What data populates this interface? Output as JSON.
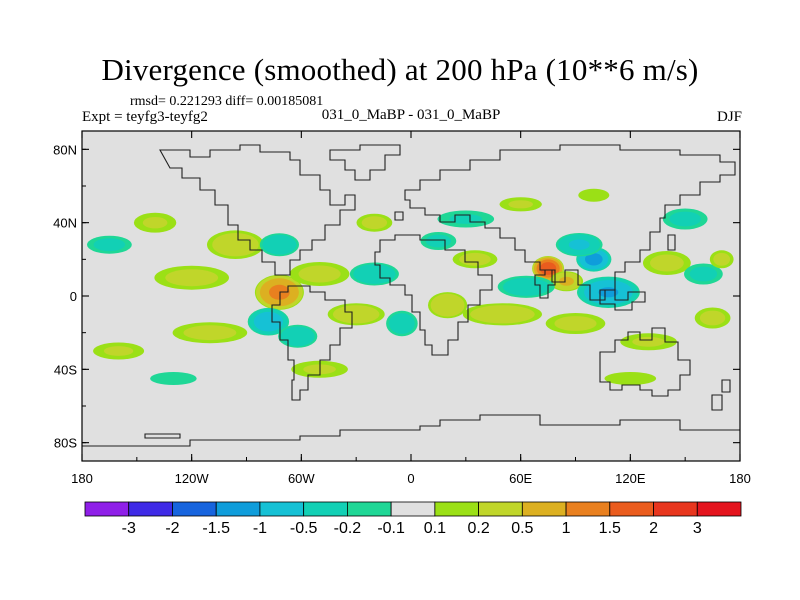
{
  "chart_data": {
    "type": "heatmap",
    "title": "Divergence (smoothed) at 200 hPa (10**6 m/s)",
    "stats_text": "rmsd= 0.221293 diff= 0.00185081",
    "left_label": "Expt = teyfg3-teyfg2",
    "center_label": "031_0_MaBP - 031_0_MaBP",
    "right_label": "DJF",
    "x_range": [
      -180,
      180
    ],
    "y_range": [
      -90,
      90
    ],
    "x_ticks": [
      {
        "value": -180,
        "label": "180"
      },
      {
        "value": -120,
        "label": "120W"
      },
      {
        "value": -60,
        "label": "60W"
      },
      {
        "value": 0,
        "label": "0"
      },
      {
        "value": 60,
        "label": "60E"
      },
      {
        "value": 120,
        "label": "120E"
      },
      {
        "value": 180,
        "label": "180"
      }
    ],
    "y_ticks": [
      {
        "value": 80,
        "label": "80N"
      },
      {
        "value": 40,
        "label": "40N"
      },
      {
        "value": 0,
        "label": "0"
      },
      {
        "value": -40,
        "label": "40S"
      },
      {
        "value": -80,
        "label": "80S"
      }
    ],
    "levels": [
      "-3",
      "-2",
      "-1.5",
      "-1",
      "-0.5",
      "-0.2",
      "-0.1",
      "0.1",
      "0.2",
      "0.5",
      "1",
      "1.5",
      "2",
      "3"
    ],
    "colors": [
      "#8f1fe8",
      "#3f2ae6",
      "#1764de",
      "#0f9ddb",
      "#16c1d5",
      "#12d0b5",
      "#1fd796",
      "#e0e0e0",
      "#9be016",
      "#c0d62a",
      "#dcb021",
      "#e9801f",
      "#ea5c1e",
      "#e8361e",
      "#e4141e"
    ],
    "features": [
      {
        "lon": 75,
        "lat": 15,
        "rx": 9,
        "ry": 7,
        "v": 2.0
      },
      {
        "lon": 100,
        "lat": 20,
        "rx": 10,
        "ry": 7,
        "v": -1.3
      },
      {
        "lon": 92,
        "lat": 28,
        "rx": 14,
        "ry": 7,
        "v": -0.6
      },
      {
        "lon": 85,
        "lat": 8,
        "rx": 10,
        "ry": 6,
        "v": 0.6
      },
      {
        "lon": 108,
        "lat": 2,
        "rx": 18,
        "ry": 9,
        "v": -1.1
      },
      {
        "lon": 63,
        "lat": 5,
        "rx": 18,
        "ry": 7,
        "v": -0.4
      },
      {
        "lon": 140,
        "lat": 18,
        "rx": 16,
        "ry": 8,
        "v": 0.3
      },
      {
        "lon": 160,
        "lat": 12,
        "rx": 13,
        "ry": 7,
        "v": -0.3
      },
      {
        "lon": 170,
        "lat": 20,
        "rx": 8,
        "ry": 6,
        "v": 0.3
      },
      {
        "lon": 150,
        "lat": 42,
        "rx": 15,
        "ry": 7,
        "v": -0.3
      },
      {
        "lon": -72,
        "lat": 2,
        "rx": 14,
        "ry": 10,
        "v": 1.2
      },
      {
        "lon": -78,
        "lat": -14,
        "rx": 12,
        "ry": 8,
        "v": -0.9
      },
      {
        "lon": -62,
        "lat": -22,
        "rx": 12,
        "ry": 7,
        "v": -0.5
      },
      {
        "lon": -96,
        "lat": 28,
        "rx": 18,
        "ry": 9,
        "v": 0.4
      },
      {
        "lon": -72,
        "lat": 28,
        "rx": 12,
        "ry": 7,
        "v": -0.5
      },
      {
        "lon": -50,
        "lat": 12,
        "rx": 20,
        "ry": 8,
        "v": 0.3
      },
      {
        "lon": -120,
        "lat": 10,
        "rx": 25,
        "ry": 8,
        "v": 0.3
      },
      {
        "lon": -140,
        "lat": 40,
        "rx": 15,
        "ry": 7,
        "v": 0.25
      },
      {
        "lon": -165,
        "lat": 28,
        "rx": 15,
        "ry": 6,
        "v": -0.3
      },
      {
        "lon": -160,
        "lat": -30,
        "rx": 18,
        "ry": 6,
        "v": 0.25
      },
      {
        "lon": -110,
        "lat": -20,
        "rx": 25,
        "ry": 7,
        "v": 0.3
      },
      {
        "lon": -20,
        "lat": 12,
        "rx": 15,
        "ry": 7,
        "v": -0.5
      },
      {
        "lon": -30,
        "lat": -10,
        "rx": 18,
        "ry": 7,
        "v": 0.4
      },
      {
        "lon": -5,
        "lat": -15,
        "rx": 10,
        "ry": 8,
        "v": -0.4
      },
      {
        "lon": 20,
        "lat": -5,
        "rx": 12,
        "ry": 8,
        "v": 0.5
      },
      {
        "lon": 35,
        "lat": 20,
        "rx": 15,
        "ry": 6,
        "v": 0.3
      },
      {
        "lon": 50,
        "lat": -10,
        "rx": 25,
        "ry": 7,
        "v": 0.4
      },
      {
        "lon": 90,
        "lat": -15,
        "rx": 20,
        "ry": 7,
        "v": 0.3
      },
      {
        "lon": 130,
        "lat": -25,
        "rx": 20,
        "ry": 6,
        "v": 0.25
      },
      {
        "lon": 165,
        "lat": -12,
        "rx": 12,
        "ry": 7,
        "v": 0.3
      },
      {
        "lon": -50,
        "lat": -40,
        "rx": 20,
        "ry": 6,
        "v": 0.25
      },
      {
        "lon": 30,
        "lat": 42,
        "rx": 20,
        "ry": 6,
        "v": -0.25
      },
      {
        "lon": 60,
        "lat": 50,
        "rx": 15,
        "ry": 5,
        "v": 0.25
      },
      {
        "lon": 100,
        "lat": 55,
        "rx": 12,
        "ry": 5,
        "v": 0.2
      },
      {
        "lon": -20,
        "lat": 40,
        "rx": 12,
        "ry": 6,
        "v": 0.3
      },
      {
        "lon": 120,
        "lat": -45,
        "rx": 20,
        "ry": 5,
        "v": 0.2
      },
      {
        "lon": -130,
        "lat": -45,
        "rx": 18,
        "ry": 5,
        "v": -0.2
      },
      {
        "lon": 15,
        "lat": 30,
        "rx": 12,
        "ry": 6,
        "v": -0.3
      }
    ]
  }
}
